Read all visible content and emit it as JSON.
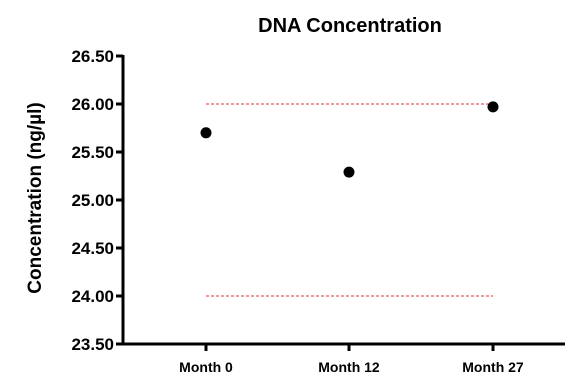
{
  "chart_data": {
    "type": "scatter",
    "title": "DNA Concentration",
    "xlabel": "",
    "ylabel": "Concentration (ng/µl)",
    "categories": [
      "Month 0",
      "Month 12",
      "Month 27"
    ],
    "values": [
      25.7,
      25.29,
      25.97
    ],
    "ylim": [
      23.5,
      26.5
    ],
    "yticks": [
      "23.50",
      "24.00",
      "24.50",
      "25.00",
      "25.50",
      "26.00",
      "26.50"
    ],
    "reference_lines": [
      {
        "y": 26.0,
        "style": "dashed",
        "color": "#e0303a"
      },
      {
        "y": 24.0,
        "style": "dashed",
        "color": "#e0303a"
      }
    ],
    "marker_color": "#000000",
    "grid": false,
    "legend": "none"
  }
}
